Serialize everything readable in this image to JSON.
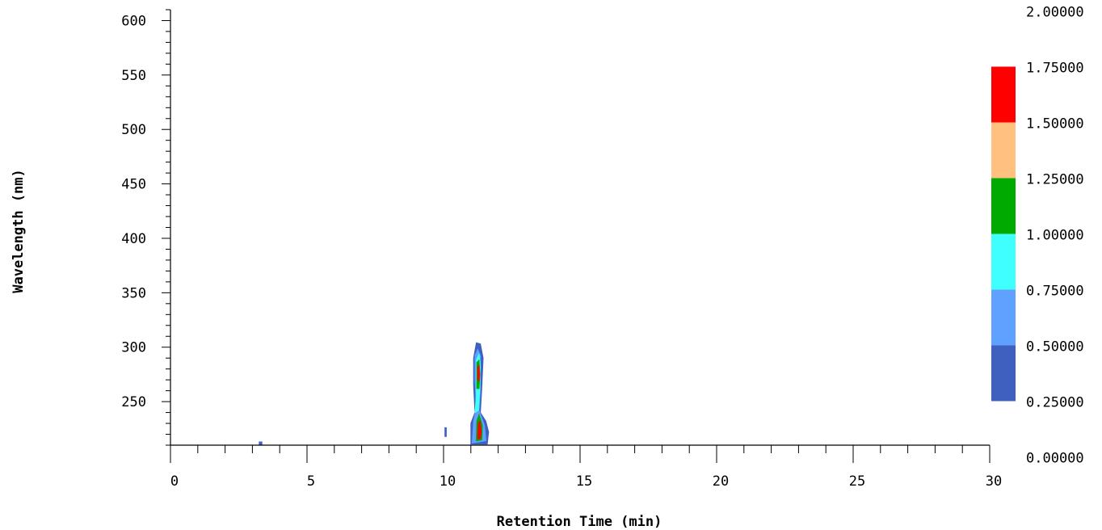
{
  "chart_data": {
    "type": "heatmap",
    "title": "",
    "xlabel": "Retention Time (min)",
    "ylabel": "Wavelength (nm)",
    "xlim": [
      0,
      30
    ],
    "ylim": [
      210,
      610
    ],
    "x_ticks": [
      "0",
      "5",
      "10",
      "15",
      "20",
      "25",
      "30"
    ],
    "y_ticks": [
      "250",
      "300",
      "350",
      "400",
      "450",
      "500",
      "550",
      "600"
    ],
    "grid": false,
    "colorbar": {
      "range": [
        0,
        2
      ],
      "labels": [
        "2.00000",
        "1.75000",
        "1.50000",
        "1.25000",
        "1.00000",
        "0.75000",
        "0.50000",
        "0.25000",
        "0.00000"
      ],
      "levels": [
        {
          "min": 1.75,
          "max": 2.0,
          "color": "#ffffff"
        },
        {
          "min": 1.5,
          "max": 1.75,
          "color": "#ff0000"
        },
        {
          "min": 1.25,
          "max": 1.5,
          "color": "#ffc080"
        },
        {
          "min": 1.0,
          "max": 1.25,
          "color": "#00aa00"
        },
        {
          "min": 0.75,
          "max": 1.0,
          "color": "#40ffff"
        },
        {
          "min": 0.5,
          "max": 0.75,
          "color": "#60a0ff"
        },
        {
          "min": 0.25,
          "max": 0.5,
          "color": "#4060c0"
        },
        {
          "min": 0.0,
          "max": 0.25,
          "color": "#ffffff"
        }
      ]
    },
    "contours": [
      {
        "level": 0.25,
        "color": "#4060c0",
        "points": [
          [
            11.0,
            211
          ],
          [
            11.0,
            230
          ],
          [
            11.15,
            240
          ],
          [
            11.1,
            265
          ],
          [
            11.1,
            290
          ],
          [
            11.2,
            304
          ],
          [
            11.35,
            303
          ],
          [
            11.45,
            290
          ],
          [
            11.4,
            262
          ],
          [
            11.35,
            240
          ],
          [
            11.55,
            232
          ],
          [
            11.65,
            222
          ],
          [
            11.6,
            211
          ]
        ]
      },
      {
        "level": 0.5,
        "color": "#60a0ff",
        "points": [
          [
            11.05,
            212
          ],
          [
            11.1,
            232
          ],
          [
            11.2,
            244
          ],
          [
            11.15,
            270
          ],
          [
            11.15,
            292
          ],
          [
            11.25,
            298
          ],
          [
            11.35,
            292
          ],
          [
            11.35,
            262
          ],
          [
            11.3,
            242
          ],
          [
            11.5,
            228
          ],
          [
            11.55,
            214
          ]
        ]
      },
      {
        "level": 0.75,
        "color": "#40ffff",
        "points": [
          [
            11.15,
            240
          ],
          [
            11.2,
            256
          ],
          [
            11.2,
            288
          ],
          [
            11.3,
            294
          ],
          [
            11.35,
            282
          ],
          [
            11.32,
            258
          ],
          [
            11.28,
            242
          ]
        ]
      },
      {
        "level": 1.0,
        "color": "#00aa00",
        "points": [
          [
            11.22,
            262
          ],
          [
            11.22,
            286
          ],
          [
            11.3,
            288
          ],
          [
            11.33,
            275
          ],
          [
            11.3,
            262
          ]
        ]
      },
      {
        "level": 1.5,
        "color": "#ff0000",
        "points": [
          [
            11.25,
            270
          ],
          [
            11.25,
            282
          ],
          [
            11.3,
            283
          ],
          [
            11.32,
            274
          ],
          [
            11.29,
            269
          ]
        ]
      },
      {
        "level": 1.0,
        "color": "#00aa00",
        "points": [
          [
            11.2,
            214
          ],
          [
            11.22,
            232
          ],
          [
            11.3,
            238
          ],
          [
            11.42,
            228
          ],
          [
            11.4,
            215
          ]
        ]
      },
      {
        "level": 1.5,
        "color": "#ff0000",
        "points": [
          [
            11.25,
            216
          ],
          [
            11.27,
            230
          ],
          [
            11.33,
            232
          ],
          [
            11.38,
            222
          ],
          [
            11.34,
            216
          ]
        ]
      },
      {
        "level": 0.25,
        "color": "#4060c0",
        "points": [
          [
            10.05,
            218
          ],
          [
            10.1,
            218
          ],
          [
            10.1,
            226
          ],
          [
            10.05,
            226
          ]
        ]
      },
      {
        "level": 0.25,
        "color": "#4060c0",
        "points": [
          [
            3.25,
            210
          ],
          [
            3.35,
            210
          ],
          [
            3.35,
            213
          ],
          [
            3.25,
            213
          ]
        ]
      }
    ]
  }
}
